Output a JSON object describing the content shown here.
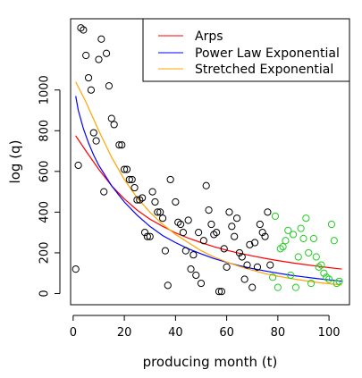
{
  "chart_data": {
    "type": "scatter",
    "xlabel": "producing month (t)",
    "ylabel": "log (q)",
    "xlim": [
      -1,
      108
    ],
    "ylim": [
      -55,
      1350
    ],
    "x_ticks": [
      0,
      20,
      40,
      60,
      80,
      100
    ],
    "y_ticks": [
      0,
      200,
      400,
      600,
      800,
      1000
    ],
    "legend_position": "top-right",
    "points_black": [
      [
        1,
        120
      ],
      [
        2,
        630
      ],
      [
        3,
        1305
      ],
      [
        4,
        1295
      ],
      [
        5,
        1170
      ],
      [
        6,
        1060
      ],
      [
        7,
        1000
      ],
      [
        8,
        790
      ],
      [
        9,
        750
      ],
      [
        10,
        1150
      ],
      [
        11,
        1250
      ],
      [
        12,
        500
      ],
      [
        13,
        1180
      ],
      [
        14,
        1020
      ],
      [
        15,
        860
      ],
      [
        16,
        830
      ],
      [
        18,
        730
      ],
      [
        19,
        730
      ],
      [
        20,
        610
      ],
      [
        21,
        610
      ],
      [
        22,
        560
      ],
      [
        23,
        560
      ],
      [
        24,
        520
      ],
      [
        25,
        460
      ],
      [
        26,
        460
      ],
      [
        27,
        470
      ],
      [
        28,
        300
      ],
      [
        29,
        280
      ],
      [
        30,
        280
      ],
      [
        31,
        500
      ],
      [
        32,
        450
      ],
      [
        33,
        400
      ],
      [
        34,
        400
      ],
      [
        35,
        370
      ],
      [
        36,
        210
      ],
      [
        37,
        40
      ],
      [
        38,
        560
      ],
      [
        40,
        450
      ],
      [
        41,
        350
      ],
      [
        42,
        340
      ],
      [
        43,
        300
      ],
      [
        44,
        210
      ],
      [
        45,
        360
      ],
      [
        46,
        120
      ],
      [
        47,
        190
      ],
      [
        48,
        90
      ],
      [
        49,
        300
      ],
      [
        50,
        50
      ],
      [
        51,
        260
      ],
      [
        52,
        530
      ],
      [
        53,
        410
      ],
      [
        54,
        340
      ],
      [
        55,
        290
      ],
      [
        56,
        300
      ],
      [
        57,
        10
      ],
      [
        58,
        10
      ],
      [
        59,
        220
      ],
      [
        60,
        130
      ],
      [
        61,
        400
      ],
      [
        62,
        330
      ],
      [
        63,
        280
      ],
      [
        64,
        370
      ],
      [
        65,
        200
      ],
      [
        66,
        180
      ],
      [
        67,
        70
      ],
      [
        68,
        140
      ],
      [
        69,
        240
      ],
      [
        70,
        30
      ],
      [
        71,
        250
      ],
      [
        72,
        130
      ],
      [
        73,
        340
      ],
      [
        74,
        300
      ],
      [
        75,
        280
      ],
      [
        76,
        400
      ],
      [
        77,
        140
      ]
    ],
    "points_green": [
      [
        78,
        80
      ],
      [
        79,
        380
      ],
      [
        80,
        30
      ],
      [
        81,
        220
      ],
      [
        82,
        230
      ],
      [
        83,
        260
      ],
      [
        84,
        310
      ],
      [
        85,
        90
      ],
      [
        86,
        290
      ],
      [
        87,
        30
      ],
      [
        88,
        180
      ],
      [
        89,
        320
      ],
      [
        90,
        270
      ],
      [
        91,
        370
      ],
      [
        92,
        200
      ],
      [
        93,
        50
      ],
      [
        94,
        270
      ],
      [
        95,
        180
      ],
      [
        96,
        130
      ],
      [
        97,
        140
      ],
      [
        98,
        100
      ],
      [
        99,
        80
      ],
      [
        100,
        70
      ],
      [
        101,
        340
      ],
      [
        102,
        260
      ],
      [
        103,
        50
      ],
      [
        104,
        60
      ]
    ],
    "series": [
      {
        "name": "Arps",
        "color": "#ff0000",
        "x": [
          1,
          5,
          10,
          15,
          20,
          25,
          30,
          35,
          40,
          45,
          50,
          55,
          60,
          65,
          70,
          75,
          80,
          85,
          90,
          95,
          100,
          105
        ],
        "y": [
          775,
          700,
          610,
          530,
          465,
          410,
          365,
          330,
          298,
          272,
          250,
          230,
          213,
          198,
          185,
          173,
          162,
          152,
          143,
          135,
          127,
          120
        ]
      },
      {
        "name": "Power Law Exponential",
        "color": "#0000ff",
        "x": [
          1,
          2,
          4,
          6,
          8,
          10,
          15,
          20,
          25,
          30,
          35,
          40,
          45,
          50,
          55,
          60,
          65,
          70,
          75,
          80,
          85,
          90,
          95,
          100,
          105
        ],
        "y": [
          970,
          900,
          810,
          740,
          680,
          630,
          530,
          450,
          385,
          330,
          285,
          250,
          220,
          195,
          172,
          153,
          137,
          123,
          111,
          100,
          90,
          82,
          74,
          67,
          61
        ]
      },
      {
        "name": "Stretched Exponential",
        "color": "#ffa500",
        "x": [
          1,
          5,
          10,
          15,
          20,
          25,
          30,
          35,
          40,
          45,
          50,
          55,
          60,
          65,
          70,
          75,
          80,
          85,
          90,
          95,
          100,
          105
        ],
        "y": [
          1040,
          940,
          800,
          670,
          560,
          470,
          400,
          340,
          290,
          250,
          210,
          180,
          155,
          133,
          115,
          98,
          85,
          74,
          64,
          55,
          48,
          42
        ]
      }
    ]
  }
}
